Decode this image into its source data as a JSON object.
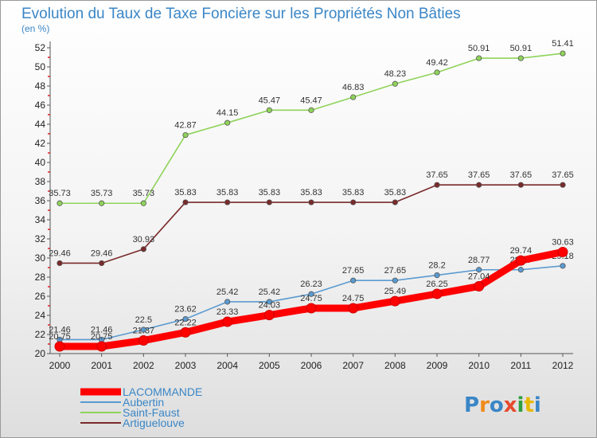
{
  "chart_data": {
    "type": "line",
    "title": "Evolution du Taux de Taxe Foncière sur les Propriétés Non Bâties",
    "unit_label": "(en %)",
    "x": [
      "2000",
      "2001",
      "2002",
      "2003",
      "2004",
      "2005",
      "2006",
      "2007",
      "2008",
      "2009",
      "2010",
      "2011",
      "2012"
    ],
    "ylim": [
      20,
      52
    ],
    "yticks": [
      "20",
      "22",
      "24",
      "26",
      "28",
      "30",
      "32",
      "34",
      "36",
      "38",
      "40",
      "42",
      "44",
      "46",
      "48",
      "50",
      "52"
    ],
    "grid": false,
    "legend_position": "bottom-left",
    "series": [
      {
        "name": "LACOMMANDE",
        "color": "#ff0000",
        "values": [
          20.75,
          20.75,
          21.37,
          22.22,
          23.33,
          24.03,
          24.75,
          24.75,
          25.49,
          26.25,
          27.04,
          29.74,
          30.63
        ],
        "labels": [
          "20.75",
          "20.75",
          "21.37",
          "22.22",
          "23.33",
          "24.03",
          "24.75",
          "24.75",
          "25.49",
          "26.25",
          "27.04",
          "29.74",
          "30.63"
        ]
      },
      {
        "name": "Aubertin",
        "color": "#5a9ad0",
        "values": [
          21.46,
          21.46,
          22.5,
          23.62,
          25.42,
          25.42,
          26.23,
          27.65,
          27.65,
          28.2,
          28.77,
          28.77,
          29.18
        ],
        "labels": [
          "21.46",
          "21.46",
          "22.5",
          "23.62",
          "25.42",
          "25.42",
          "26.23",
          "27.65",
          "27.65",
          "28.2",
          "28.77",
          "28.77",
          "29.18"
        ]
      },
      {
        "name": "Saint-Faust",
        "color": "#8fd35a",
        "values": [
          35.73,
          35.73,
          35.73,
          42.87,
          44.15,
          45.47,
          45.47,
          46.83,
          48.23,
          49.42,
          50.91,
          50.91,
          51.41
        ],
        "labels": [
          "35.73",
          "35.73",
          "35.73",
          "42.87",
          "44.15",
          "45.47",
          "45.47",
          "46.83",
          "48.23",
          "49.42",
          "50.91",
          "50.91",
          "51.41"
        ]
      },
      {
        "name": "Artiguelouve",
        "color": "#7a2a2a",
        "values": [
          29.46,
          29.46,
          30.93,
          35.83,
          35.83,
          35.83,
          35.83,
          35.83,
          35.83,
          37.65,
          37.65,
          37.65,
          37.65
        ],
        "labels": [
          "29.46",
          "29.46",
          "30.93",
          "35.83",
          "35.83",
          "35.83",
          "35.83",
          "35.83",
          "35.83",
          "37.65",
          "37.65",
          "37.65",
          "37.65"
        ]
      }
    ]
  },
  "logo": {
    "text": "Proxiti",
    "colors": [
      "#3a86c6",
      "#f08a1a",
      "#3a86c6",
      "#e64a2e",
      "#2e9e3e",
      "#e6b800",
      "#3a86c6"
    ]
  }
}
